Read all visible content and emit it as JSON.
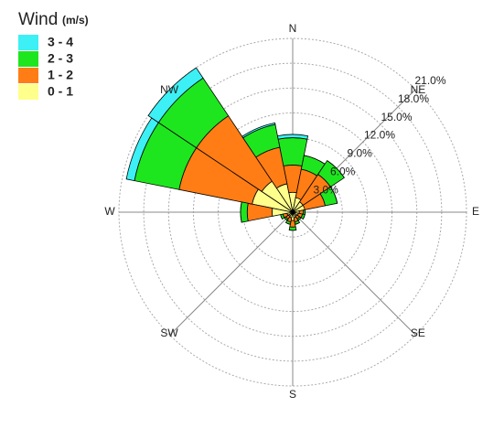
{
  "chart_data": {
    "type": "windrose",
    "legend_title": "Wind",
    "legend_unit": "(m/s)",
    "categories": [
      "N",
      null,
      "NE",
      null,
      "E",
      null,
      "SE",
      null,
      "S",
      null,
      "SW",
      null,
      "W",
      null,
      "NW",
      null
    ],
    "series": [
      {
        "name": "0 - 1",
        "color": "#ffff8c",
        "values": [
          2.4,
          1.8,
          1.5,
          1.5,
          0.8,
          0.7,
          0.6,
          0.7,
          1.0,
          0.7,
          0.6,
          0.7,
          2.5,
          5.0,
          4.5,
          3.5
        ]
      },
      {
        "name": "1 - 2",
        "color": "#ff7d14",
        "values": [
          3.3,
          3.5,
          4.0,
          2.5,
          0.5,
          0.5,
          0.4,
          0.5,
          0.8,
          0.5,
          0.4,
          0.5,
          3.0,
          9.0,
          9.5,
          4.5
        ]
      },
      {
        "name": "2 - 3",
        "color": "#1ee61e",
        "values": [
          3.3,
          1.7,
          2.0,
          1.5,
          0.2,
          0.3,
          0.2,
          0.3,
          0.4,
          0.3,
          0.2,
          0.3,
          0.8,
          5.5,
          5.5,
          2.8
        ]
      },
      {
        "name": "3 - 4",
        "color": "#3cf0f5",
        "values": [
          0.4,
          0,
          0,
          0,
          0,
          0,
          0,
          0,
          0,
          0,
          0,
          0,
          0,
          1.0,
          1.5,
          0.2
        ]
      }
    ],
    "rlim": [
      0,
      21
    ],
    "rticks": [
      {
        "value": 3,
        "label": "3.0%"
      },
      {
        "value": 6,
        "label": "6.0%"
      },
      {
        "value": 9,
        "label": "9.0%"
      },
      {
        "value": 12,
        "label": "12.0%"
      },
      {
        "value": 15,
        "label": "15.0%"
      },
      {
        "value": 18,
        "label": "18.0%"
      },
      {
        "value": 21,
        "label": "21.0%"
      }
    ]
  }
}
